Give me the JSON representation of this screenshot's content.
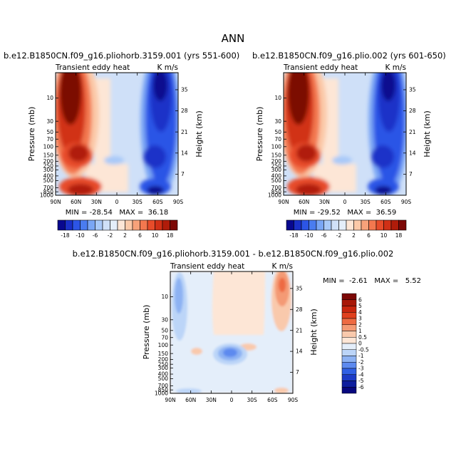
{
  "page_title": "ANN",
  "chart_data": [
    {
      "type": "heatmap",
      "title": "b.e12.B1850CN.f09_g16.pliohorb.3159.001 (yrs 551-600)",
      "subtitle_left": "Transient eddy heat",
      "subtitle_right": "K m/s",
      "xlabel": "",
      "ylabel": "Pressure (mb)",
      "ylabel_right": "Height (km)",
      "x_ticks": [
        "90N",
        "60N",
        "30N",
        "0",
        "30S",
        "60S",
        "90S"
      ],
      "y_ticks": [
        "10",
        "30",
        "50",
        "70",
        "100",
        "150",
        "200",
        "250",
        "300",
        "400",
        "500",
        "700",
        "850",
        "1000"
      ],
      "y_ticks_right": [
        "35",
        "28",
        "21",
        "14",
        "7"
      ],
      "stats": {
        "min": -28.54,
        "max": 36.18
      },
      "stats_text": "MIN = -28.54   MAX =  36.18"
    },
    {
      "type": "heatmap",
      "title": "b.e12.B1850CN.f09_g16.plio.002 (yrs 601-650)",
      "subtitle_left": "Transient eddy heat",
      "subtitle_right": "K m/s",
      "xlabel": "",
      "ylabel": "Pressure (mb)",
      "ylabel_right": "Height (km)",
      "x_ticks": [
        "90N",
        "60N",
        "30N",
        "0",
        "30S",
        "60S",
        "90S"
      ],
      "y_ticks": [
        "10",
        "30",
        "50",
        "70",
        "100",
        "150",
        "200",
        "250",
        "300",
        "400",
        "500",
        "700",
        "850",
        "1000"
      ],
      "y_ticks_right": [
        "35",
        "28",
        "21",
        "14",
        "7"
      ],
      "stats": {
        "min": -29.52,
        "max": 36.59
      },
      "stats_text": "MIN = -29.52   MAX =  36.59"
    },
    {
      "type": "heatmap",
      "title": "b.e12.B1850CN.f09_g16.pliohorb.3159.001 - b.e12.B1850CN.f09_g16.plio.002",
      "subtitle_left": "Transient eddy heat",
      "subtitle_right": "K m/s",
      "xlabel": "",
      "ylabel": "Pressure (mb)",
      "ylabel_right": "Height (km)",
      "x_ticks": [
        "90N",
        "60N",
        "30N",
        "0",
        "30S",
        "60S",
        "90S"
      ],
      "y_ticks": [
        "10",
        "30",
        "50",
        "70",
        "100",
        "150",
        "200",
        "250",
        "300",
        "400",
        "500",
        "700",
        "850",
        "1000"
      ],
      "y_ticks_right": [
        "35",
        "28",
        "21",
        "14",
        "7"
      ],
      "stats": {
        "min": -2.61,
        "max": 5.52
      },
      "stats_text": "MIN =  -2.61   MAX =   5.52"
    }
  ],
  "colorbar_top": {
    "labels": [
      "-18",
      "-10",
      "-6",
      "-2",
      "2",
      "6",
      "10",
      "18"
    ],
    "colors": [
      "#08088f",
      "#1a30c8",
      "#2c55e6",
      "#4a7cf0",
      "#7aa6f5",
      "#a9c9f8",
      "#cfe0f8",
      "#e4eefa",
      "#fde6d6",
      "#fbc9a8",
      "#f7a27a",
      "#f3784f",
      "#e74c2a",
      "#d13016",
      "#b01c0a",
      "#7c0806"
    ]
  },
  "colorbar_diff": {
    "labels": [
      "6",
      "5",
      "4",
      "3",
      "2",
      "1",
      "0.5",
      "0",
      "-0.5",
      "-1",
      "-2",
      "-3",
      "-4",
      "-5",
      "-6"
    ],
    "colors": [
      "#7c0806",
      "#a81808",
      "#c8260e",
      "#e0401e",
      "#ee6a42",
      "#f49a74",
      "#f9c9ac",
      "#fde6d6",
      "#e4eefa",
      "#bcd5f8",
      "#8db2f3",
      "#5d8aef",
      "#3060e4",
      "#1c3bc6",
      "#0e1e9e",
      "#07077e"
    ]
  }
}
